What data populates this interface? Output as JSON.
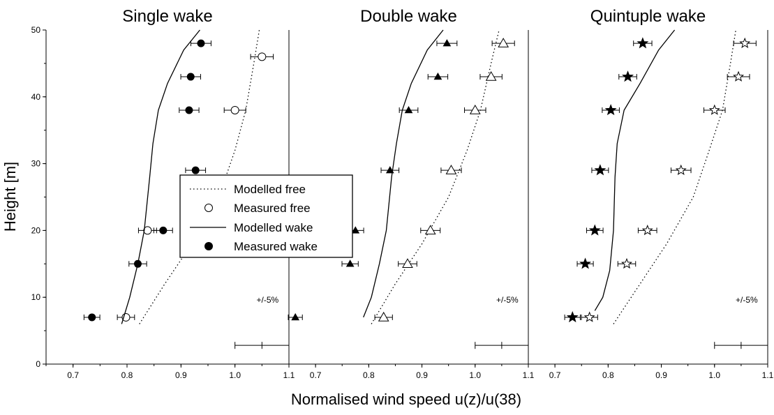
{
  "figure": {
    "xlabel": "Normalised wind speed u(z)/u(38)",
    "ylabel": "Height [m]",
    "error_note": "+/-5%",
    "legend": {
      "modelled_free": "Modelled free",
      "measured_free": "Measured free",
      "modelled_wake": "Modelled wake",
      "measured_wake": "Measured wake"
    }
  },
  "chart_data": [
    {
      "type": "scatter",
      "title": "Single wake",
      "xlim": [
        0.65,
        1.1
      ],
      "ylim": [
        0,
        50
      ],
      "xticks": [
        "0.7",
        "0.8",
        "0.9",
        "1.0",
        "1.1"
      ],
      "yticks": [
        "0",
        "10",
        "20",
        "30",
        "40",
        "50"
      ],
      "series": [
        {
          "name": "Modelled free",
          "style": "dotted-line",
          "x": [
            0.823,
            0.87,
            0.92,
            0.97,
            1.0,
            1.02,
            1.035,
            1.045
          ],
          "y": [
            6,
            12,
            18,
            25,
            32,
            38,
            45,
            50
          ]
        },
        {
          "name": "Measured free",
          "style": "open-circle",
          "x": [
            0.798,
            0.838,
            1.0,
            1.05
          ],
          "y": [
            7,
            20,
            38,
            46
          ]
        },
        {
          "name": "Modelled wake",
          "style": "solid-line",
          "x": [
            0.79,
            0.805,
            0.82,
            0.832,
            0.842,
            0.848,
            0.858,
            0.875,
            0.905,
            0.935
          ],
          "y": [
            6,
            10,
            15,
            20,
            28,
            33,
            38,
            42,
            47,
            50
          ]
        },
        {
          "name": "Measured wake",
          "style": "filled-circle",
          "x": [
            0.735,
            0.82,
            0.867,
            0.927,
            0.915,
            0.918,
            0.937
          ],
          "y": [
            7,
            15,
            20,
            29,
            38,
            43,
            48
          ]
        }
      ]
    },
    {
      "type": "scatter",
      "title": "Double wake",
      "xlim": [
        0.65,
        1.1
      ],
      "ylim": [
        0,
        50
      ],
      "xticks": [
        "0.7",
        "0.8",
        "0.9",
        "1.0",
        "1.1"
      ],
      "series": [
        {
          "style": "dotted-line",
          "x": [
            0.805,
            0.85,
            0.9,
            0.95,
            0.985,
            1.01,
            1.03,
            1.045
          ],
          "y": [
            6,
            12,
            18,
            25,
            32,
            38,
            45,
            50
          ]
        },
        {
          "style": "open-triangle",
          "x": [
            0.828,
            0.873,
            0.916,
            0.955,
            1.0,
            1.03,
            1.053
          ],
          "y": [
            7,
            15,
            20,
            29,
            38,
            43,
            48
          ]
        },
        {
          "style": "solid-line",
          "x": [
            0.79,
            0.805,
            0.82,
            0.833,
            0.843,
            0.852,
            0.863,
            0.88,
            0.91,
            0.94
          ],
          "y": [
            7,
            10,
            15,
            20,
            28,
            33,
            38,
            42,
            47,
            50
          ]
        },
        {
          "style": "filled-triangle",
          "x": [
            0.662,
            0.765,
            0.775,
            0.84,
            0.875,
            0.93,
            0.947
          ],
          "y": [
            7,
            15,
            20,
            29,
            38,
            43,
            48
          ]
        }
      ]
    },
    {
      "type": "scatter",
      "title": "Quintuple wake",
      "xlim": [
        0.65,
        1.1
      ],
      "ylim": [
        0,
        50
      ],
      "xticks": [
        "0.7",
        "0.8",
        "0.9",
        "1.0",
        "1.1"
      ],
      "series": [
        {
          "style": "dotted-line",
          "x": [
            0.81,
            0.86,
            0.91,
            0.96,
            0.99,
            1.015,
            1.03,
            1.04
          ],
          "y": [
            6,
            12,
            18,
            25,
            32,
            38,
            45,
            50
          ]
        },
        {
          "style": "open-star",
          "x": [
            0.765,
            0.835,
            0.874,
            0.937,
            1.0,
            1.045,
            1.057
          ],
          "y": [
            7,
            15,
            20,
            29,
            38,
            43,
            48
          ]
        },
        {
          "style": "solid-line",
          "x": [
            0.775,
            0.79,
            0.803,
            0.81,
            0.813,
            0.817,
            0.83,
            0.86,
            0.895,
            0.925
          ],
          "y": [
            8,
            10,
            14,
            20,
            28,
            33,
            38,
            42,
            47,
            50
          ]
        },
        {
          "style": "filled-star",
          "x": [
            0.733,
            0.757,
            0.775,
            0.785,
            0.805,
            0.837,
            0.865
          ],
          "y": [
            7,
            15,
            20,
            29,
            38,
            43,
            48
          ]
        }
      ]
    }
  ]
}
